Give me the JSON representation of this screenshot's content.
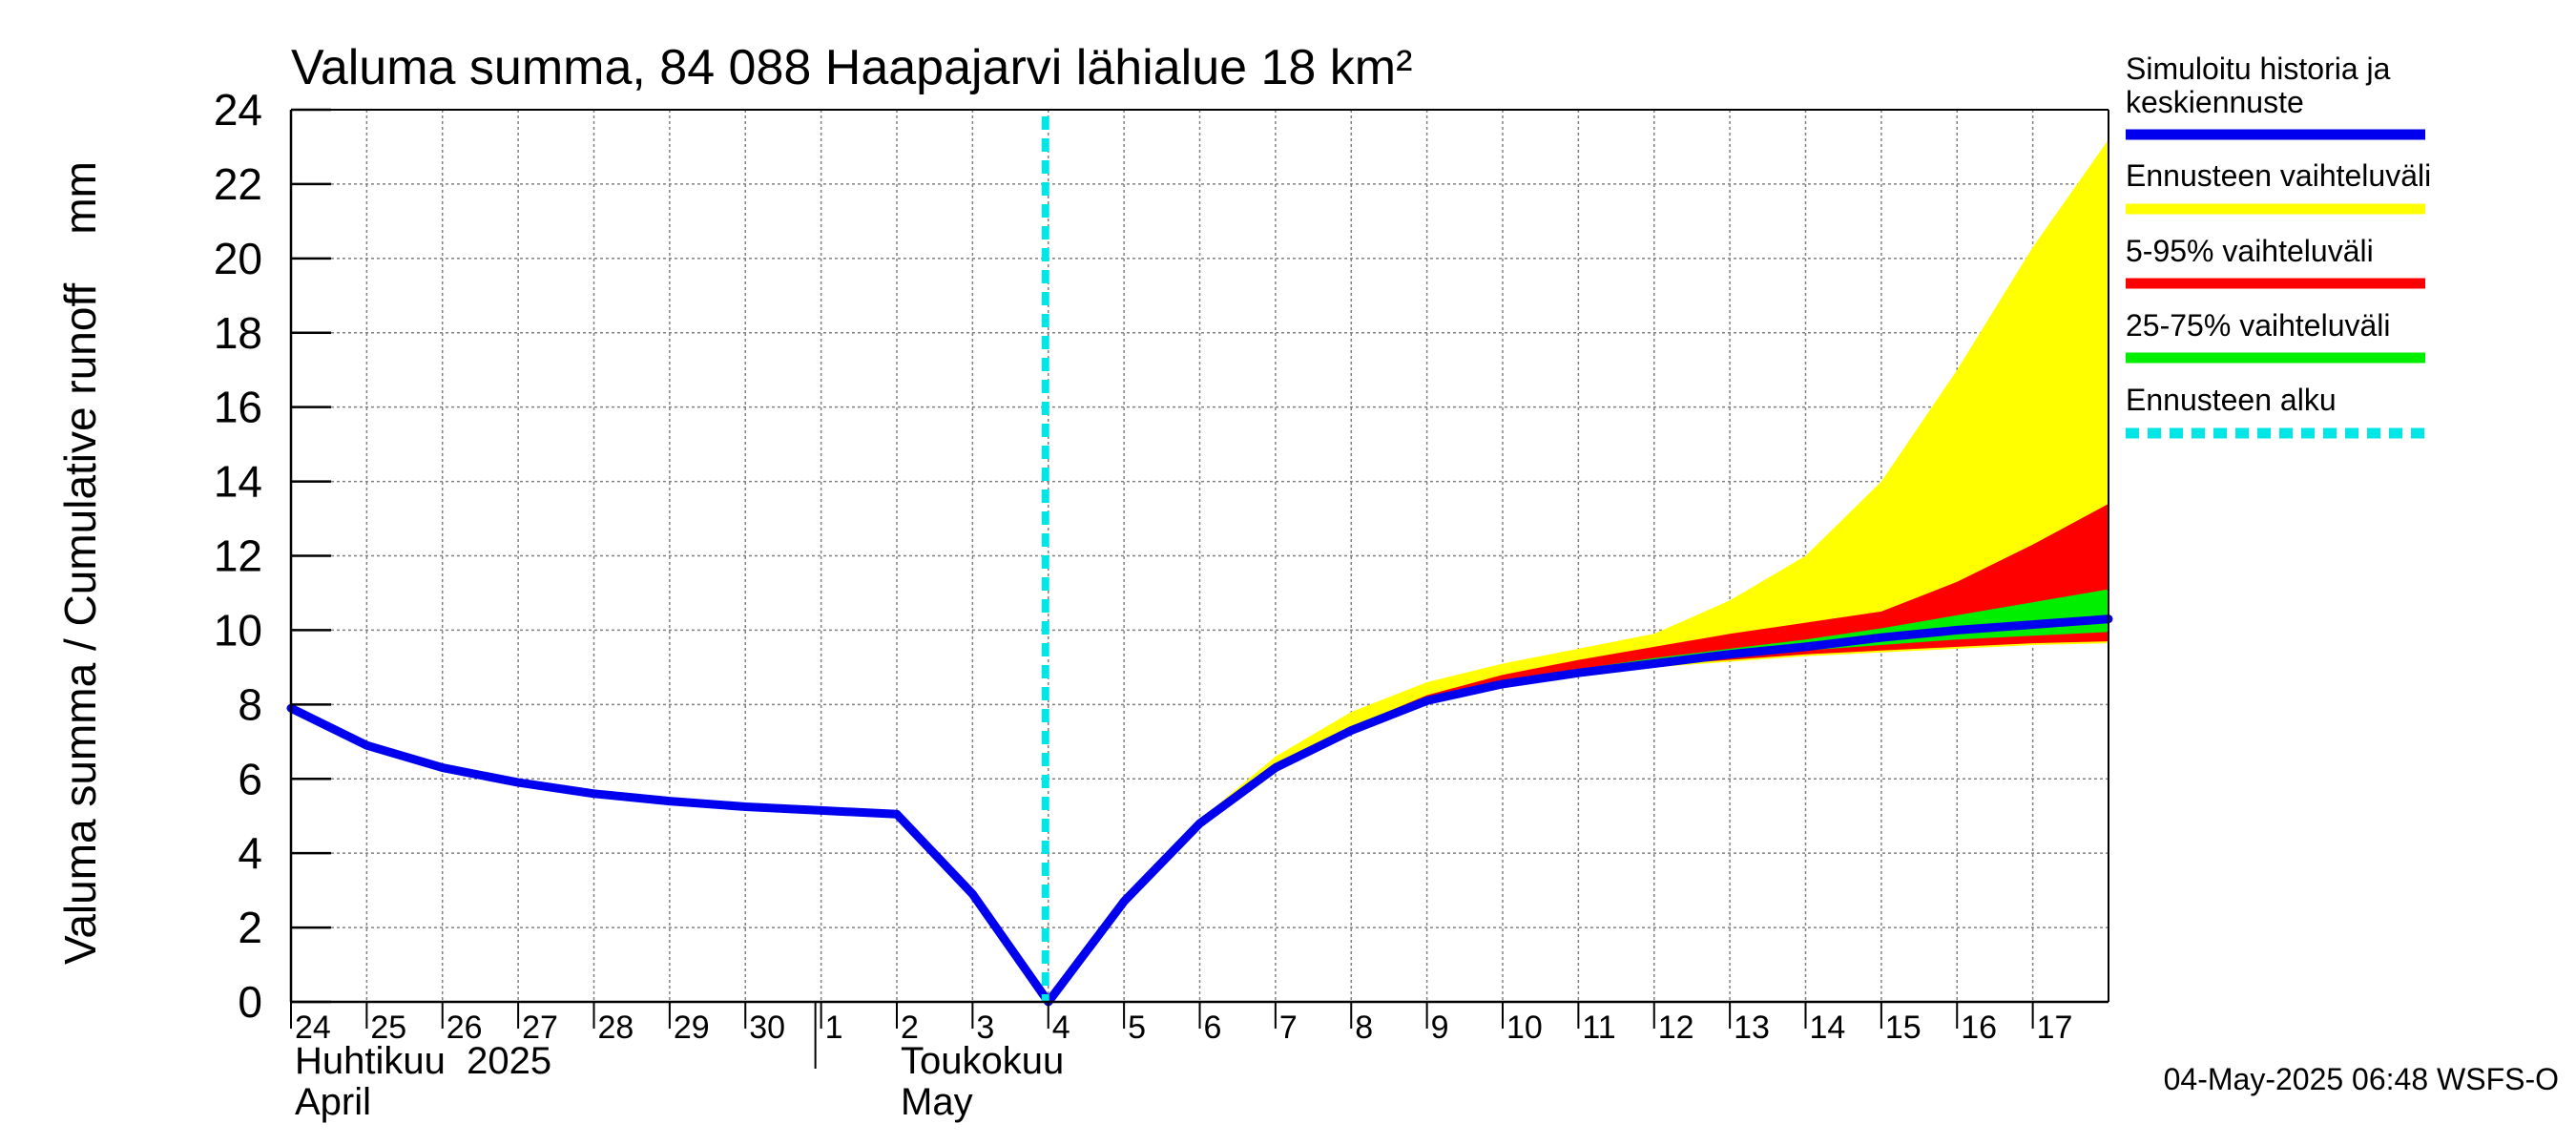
{
  "chart_data": {
    "type": "area",
    "title": "Valuma summa, 84 088 Haapajarvi lähialue 18 km²",
    "ylabel": "Valuma summa / Cumulative runoff    mm",
    "xlabel": "",
    "ylim": [
      0,
      24
    ],
    "yticks": [
      "0",
      "2",
      "4",
      "6",
      "8",
      "10",
      "12",
      "14",
      "16",
      "18",
      "20",
      "22",
      "24"
    ],
    "xlim": [
      "2025-04-24",
      "2025-05-18"
    ],
    "day_ticks": [
      {
        "date": "2025-04-24",
        "label": "24"
      },
      {
        "date": "2025-04-25",
        "label": "25"
      },
      {
        "date": "2025-04-26",
        "label": "26"
      },
      {
        "date": "2025-04-27",
        "label": "27"
      },
      {
        "date": "2025-04-28",
        "label": "28"
      },
      {
        "date": "2025-04-29",
        "label": "29"
      },
      {
        "date": "2025-04-30",
        "label": "30"
      },
      {
        "date": "2025-05-01",
        "label": "1"
      },
      {
        "date": "2025-05-02",
        "label": "2"
      },
      {
        "date": "2025-05-03",
        "label": "3"
      },
      {
        "date": "2025-05-04",
        "label": "4"
      },
      {
        "date": "2025-05-05",
        "label": "5"
      },
      {
        "date": "2025-05-06",
        "label": "6"
      },
      {
        "date": "2025-05-07",
        "label": "7"
      },
      {
        "date": "2025-05-08",
        "label": "8"
      },
      {
        "date": "2025-05-09",
        "label": "9"
      },
      {
        "date": "2025-05-10",
        "label": "10"
      },
      {
        "date": "2025-05-11",
        "label": "11"
      },
      {
        "date": "2025-05-12",
        "label": "12"
      },
      {
        "date": "2025-05-13",
        "label": "13"
      },
      {
        "date": "2025-05-14",
        "label": "14"
      },
      {
        "date": "2025-05-15",
        "label": "15"
      },
      {
        "date": "2025-05-16",
        "label": "16"
      },
      {
        "date": "2025-05-17",
        "label": "17"
      }
    ],
    "month_labels": [
      {
        "date": "2025-04-24",
        "line1": "Huhtikuu  2025",
        "line2": "April"
      },
      {
        "date": "2025-05-02",
        "line1": "Toukokuu",
        "line2": "May"
      }
    ],
    "month_boundary": "2025-05-01",
    "forecast_start": "2025-05-04",
    "series": [
      {
        "name": "Simuloitu historia ja keskiennuste",
        "kind": "line",
        "color": "#0000ee",
        "x": [
          "2025-04-24",
          "2025-04-25",
          "2025-04-26",
          "2025-04-27",
          "2025-04-28",
          "2025-04-29",
          "2025-04-30",
          "2025-05-01",
          "2025-05-02",
          "2025-05-03",
          "2025-05-04",
          "2025-05-05",
          "2025-05-06",
          "2025-05-07",
          "2025-05-08",
          "2025-05-09",
          "2025-05-10",
          "2025-05-11",
          "2025-05-12",
          "2025-05-13",
          "2025-05-14",
          "2025-05-15",
          "2025-05-16",
          "2025-05-17",
          "2025-05-18"
        ],
        "y": [
          7.9,
          6.9,
          6.3,
          5.9,
          5.6,
          5.4,
          5.25,
          5.15,
          5.05,
          2.9,
          0.0,
          2.7,
          4.8,
          6.3,
          7.3,
          8.1,
          8.55,
          8.85,
          9.1,
          9.35,
          9.55,
          9.8,
          10.0,
          10.15,
          10.3
        ]
      },
      {
        "name": "Ennusteen vaihteluväli",
        "kind": "band",
        "color": "#ffff00",
        "x": [
          "2025-05-04",
          "2025-05-05",
          "2025-05-06",
          "2025-05-07",
          "2025-05-08",
          "2025-05-09",
          "2025-05-10",
          "2025-05-11",
          "2025-05-12",
          "2025-05-13",
          "2025-05-14",
          "2025-05-15",
          "2025-05-16",
          "2025-05-17",
          "2025-05-18"
        ],
        "lower": [
          0.0,
          2.7,
          4.8,
          6.2,
          7.2,
          8.0,
          8.45,
          8.75,
          9.0,
          9.15,
          9.3,
          9.4,
          9.5,
          9.6,
          9.65
        ],
        "upper": [
          0.0,
          2.7,
          4.9,
          6.6,
          7.8,
          8.6,
          9.1,
          9.5,
          9.9,
          10.8,
          12.0,
          14.0,
          17.0,
          20.3,
          23.2
        ]
      },
      {
        "name": "5-95% vaihteluväli",
        "kind": "band",
        "color": "#ff0000",
        "x": [
          "2025-05-04",
          "2025-05-05",
          "2025-05-06",
          "2025-05-07",
          "2025-05-08",
          "2025-05-09",
          "2025-05-10",
          "2025-05-11",
          "2025-05-12",
          "2025-05-13",
          "2025-05-14",
          "2025-05-15",
          "2025-05-16",
          "2025-05-17",
          "2025-05-18"
        ],
        "lower": [
          0.0,
          2.7,
          4.8,
          6.2,
          7.25,
          8.05,
          8.5,
          8.8,
          9.05,
          9.2,
          9.35,
          9.45,
          9.55,
          9.65,
          9.7
        ],
        "upper": [
          0.0,
          2.7,
          4.85,
          6.35,
          7.4,
          8.25,
          8.8,
          9.2,
          9.55,
          9.9,
          10.2,
          10.5,
          11.3,
          12.3,
          13.4
        ]
      },
      {
        "name": "25-75% vaihteluväli",
        "kind": "band",
        "color": "#00ee00",
        "x": [
          "2025-05-04",
          "2025-05-05",
          "2025-05-06",
          "2025-05-07",
          "2025-05-08",
          "2025-05-09",
          "2025-05-10",
          "2025-05-11",
          "2025-05-12",
          "2025-05-13",
          "2025-05-14",
          "2025-05-15",
          "2025-05-16",
          "2025-05-17",
          "2025-05-18"
        ],
        "lower": [
          0.0,
          2.7,
          4.8,
          6.25,
          7.28,
          8.08,
          8.52,
          8.82,
          9.07,
          9.28,
          9.45,
          9.6,
          9.75,
          9.85,
          9.95
        ],
        "upper": [
          0.0,
          2.7,
          4.82,
          6.3,
          7.35,
          8.15,
          8.62,
          8.95,
          9.25,
          9.5,
          9.75,
          10.05,
          10.4,
          10.75,
          11.1
        ]
      }
    ],
    "legend": {
      "placement": "right",
      "items": [
        {
          "line1": "Simuloitu historia ja",
          "line2": "keskiennuste",
          "color": "#0000ee",
          "style": "solid"
        },
        {
          "line1": "Ennusteen vaihteluväli",
          "line2": "",
          "color": "#ffff00",
          "style": "solid"
        },
        {
          "line1": "5-95% vaihteluväli",
          "line2": "",
          "color": "#ff0000",
          "style": "solid"
        },
        {
          "line1": "25-75% vaihteluväli",
          "line2": "",
          "color": "#00ee00",
          "style": "solid"
        },
        {
          "line1": "Ennusteen alku",
          "line2": "",
          "color": "#00e5e5",
          "style": "dashed"
        }
      ]
    },
    "grid": true,
    "timestamp": "04-May-2025 06:48 WSFS-O"
  }
}
